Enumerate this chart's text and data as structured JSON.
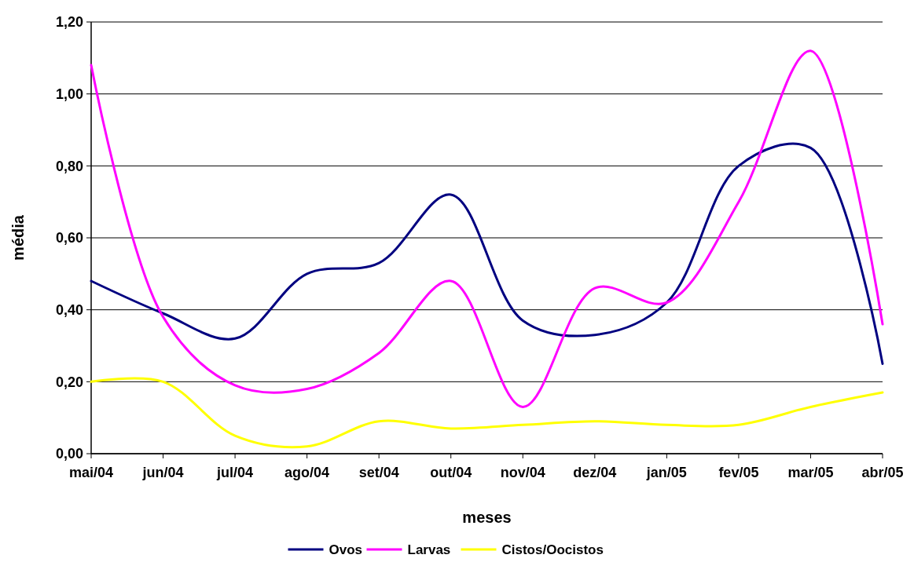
{
  "chart_data": {
    "type": "line",
    "xlabel": "meses",
    "ylabel": "média",
    "categories": [
      "mai/04",
      "jun/04",
      "jul/04",
      "ago/04",
      "set/04",
      "out/04",
      "nov/04",
      "dez/04",
      "jan/05",
      "fev/05",
      "mar/05",
      "abr/05"
    ],
    "series": [
      {
        "name": "Ovos",
        "color": "#000080",
        "values": [
          0.48,
          0.39,
          0.32,
          0.5,
          0.53,
          0.72,
          0.37,
          0.33,
          0.42,
          0.8,
          0.85,
          0.25
        ]
      },
      {
        "name": "Larvas",
        "color": "#ff00ff",
        "values": [
          1.08,
          0.38,
          0.19,
          0.18,
          0.28,
          0.48,
          0.13,
          0.46,
          0.42,
          0.7,
          1.12,
          0.36
        ]
      },
      {
        "name": "Cistos/Oocistos",
        "color": "#ffff00",
        "values": [
          0.2,
          0.2,
          0.05,
          0.02,
          0.09,
          0.07,
          0.08,
          0.09,
          0.08,
          0.08,
          0.13,
          0.17
        ]
      }
    ],
    "ylim": [
      0,
      1.2
    ],
    "yticks": [
      {
        "value": 0,
        "label": "0,00"
      },
      {
        "value": 0.2,
        "label": "0,20"
      },
      {
        "value": 0.4,
        "label": "0,40"
      },
      {
        "value": 0.6,
        "label": "0,60"
      },
      {
        "value": 0.8,
        "label": "0,80"
      },
      {
        "value": 1.0,
        "label": "1,00"
      },
      {
        "value": 1.2,
        "label": "1,20"
      }
    ],
    "grid": "y",
    "legend": "bottom",
    "marker": "none",
    "line_style": "solid"
  }
}
